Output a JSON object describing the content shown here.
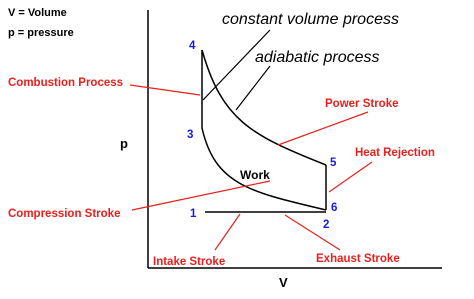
{
  "key": [
    "V = Volume",
    "p = pressure"
  ],
  "axes": {
    "y": "p",
    "x": "V"
  },
  "processes": [
    "constant volume process",
    "adiabatic process"
  ],
  "points": [
    "1",
    "2",
    "3",
    "4",
    "5",
    "6"
  ],
  "work": "Work",
  "strokes": [
    "Combustion Process",
    "Power Stroke",
    "Heat Rejection",
    "Compression Stroke",
    "Intake Stroke",
    "Exhaust Stroke"
  ]
}
